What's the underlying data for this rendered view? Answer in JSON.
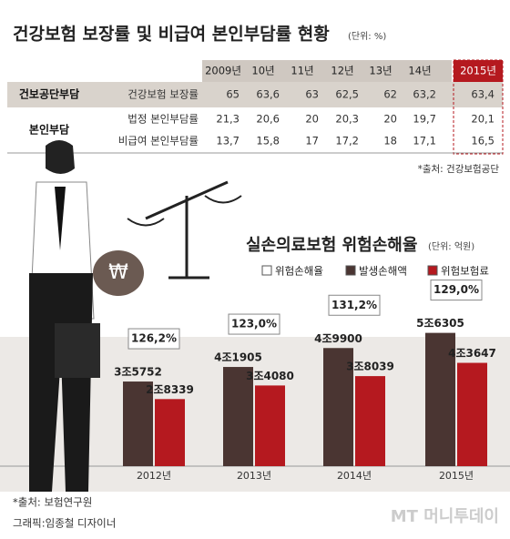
{
  "header": {
    "title": "건강보험 보장률 및 비급여 본인부담률 현황",
    "unit": "(단위: %)"
  },
  "table": {
    "years": [
      "2009년",
      "10년",
      "11년",
      "12년",
      "13년",
      "14년",
      "2015년"
    ],
    "rows": [
      {
        "group": "건보공단부담",
        "label": "건강보험 보장률",
        "cells": [
          "65",
          "63,6",
          "63",
          "62,5",
          "62",
          "63,2",
          "63,4"
        ]
      },
      {
        "group": "본인부담",
        "label": "법정 본인부담률",
        "cells": [
          "21,3",
          "20,6",
          "20",
          "20,3",
          "20",
          "19,7",
          "20,1"
        ]
      },
      {
        "label": "비급여 본인부담률",
        "cells": [
          "13,7",
          "15,8",
          "17",
          "17,2",
          "18",
          "17,1",
          "16,5"
        ]
      }
    ],
    "source": "*출처: 건강보험공단"
  },
  "chart_data": {
    "type": "bar",
    "title": "실손의료보험 위험손해율",
    "unit": "(단위: 억원)",
    "categories": [
      "2012년",
      "2013년",
      "2014년",
      "2015년"
    ],
    "series": [
      {
        "name": "위험손해율",
        "color": "#ffffff",
        "values": [
          126.2,
          123.0,
          131.2,
          129.0
        ],
        "value_labels": [
          "126,2%",
          "123,0%",
          "131,2%",
          "129,0%"
        ]
      },
      {
        "name": "발생손해액",
        "color": "#4a3532",
        "values": [
          35752,
          41905,
          49900,
          56305
        ],
        "value_labels": [
          "3조5752",
          "4조1905",
          "4조9900",
          "5조6305"
        ]
      },
      {
        "name": "위험보험료",
        "color": "#b5191f",
        "values": [
          28339,
          34080,
          38039,
          43647
        ],
        "value_labels": [
          "2조8339",
          "3조4080",
          "3조8039",
          "4조3647"
        ]
      }
    ]
  },
  "footer": {
    "source": "*출처: 보험연구원",
    "credit": "그래픽:임종철 디자이너",
    "logo": "MT 머니투데이"
  }
}
